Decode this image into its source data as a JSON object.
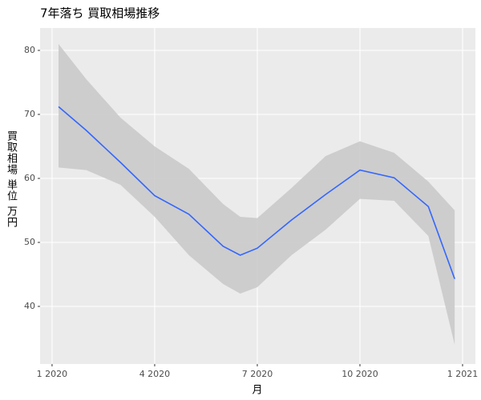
{
  "chart_data": {
    "type": "smooth",
    "title": "7年落ち 買取相場推移",
    "x_label": "月",
    "y_label": "買取相場 単位 万円",
    "x": [
      0.19,
      1,
      2,
      3,
      4,
      5,
      5.5,
      6,
      7,
      8,
      9,
      10,
      11,
      11.77
    ],
    "series": [
      {
        "name": "fit",
        "color": "#3366ff",
        "values": [
          71.2,
          67.5,
          62.5,
          57.3,
          54.4,
          49.4,
          48,
          49.1,
          53.5,
          57.5,
          61.3,
          60.1,
          55.6,
          44.3
        ]
      },
      {
        "name": "upper",
        "color": "#c8c8c8",
        "values": [
          81,
          75.5,
          69.5,
          65,
          61.5,
          56,
          54,
          53.8,
          58.5,
          63.5,
          65.8,
          64,
          59.5,
          55
        ]
      },
      {
        "name": "lower",
        "color": "#c8c8c8",
        "values": [
          61.7,
          61.3,
          59,
          54,
          48,
          43.5,
          42,
          43,
          48,
          52,
          56.8,
          56.5,
          51,
          34
        ]
      }
    ],
    "xlim": [
      -0.35,
      12.375
    ],
    "ylim": [
      31,
      83.5
    ],
    "xticks": [
      {
        "value": 0,
        "label": "1 2020"
      },
      {
        "value": 3,
        "label": "4 2020"
      },
      {
        "value": 6,
        "label": "7 2020"
      },
      {
        "value": 9,
        "label": "10 2020"
      },
      {
        "value": 12,
        "label": "1 2021"
      }
    ],
    "yticks": [
      40,
      50,
      60,
      70,
      80
    ],
    "grid": true
  }
}
